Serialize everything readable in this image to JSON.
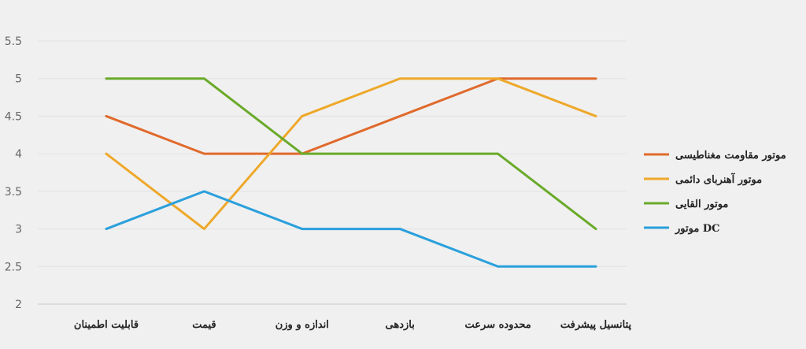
{
  "chart_data": {
    "type": "line",
    "title": "",
    "xlabel": "",
    "ylabel": "",
    "categories": [
      "قابلیت اطمینان",
      "قیمت",
      "اندازه و وزن",
      "بازدهی",
      "محدوده سرعت",
      "پتانسیل پیشرفت"
    ],
    "y_ticks": [
      "2",
      "2.5",
      "3",
      "3.5",
      "4",
      "4.5",
      "5",
      "5.5"
    ],
    "ylim": [
      2,
      5.5
    ],
    "grid": true,
    "legend_position": "right",
    "series": [
      {
        "name": "موتور مقاومت مغناطیسی",
        "color": "#e06a2c",
        "values": [
          4.5,
          4,
          4,
          4.5,
          5,
          5
        ]
      },
      {
        "name": "موتور آهنربای دائمی",
        "color": "#eea82a",
        "values": [
          4,
          3,
          4.5,
          5,
          5,
          4.5
        ]
      },
      {
        "name": "موتور القایی",
        "color": "#6aaa2a",
        "values": [
          5,
          5,
          4,
          4,
          4,
          3
        ]
      },
      {
        "name": "موتور DC",
        "color": "#2aa0dc",
        "values": [
          3,
          3.5,
          3,
          3,
          2.5,
          2.5
        ]
      }
    ]
  }
}
